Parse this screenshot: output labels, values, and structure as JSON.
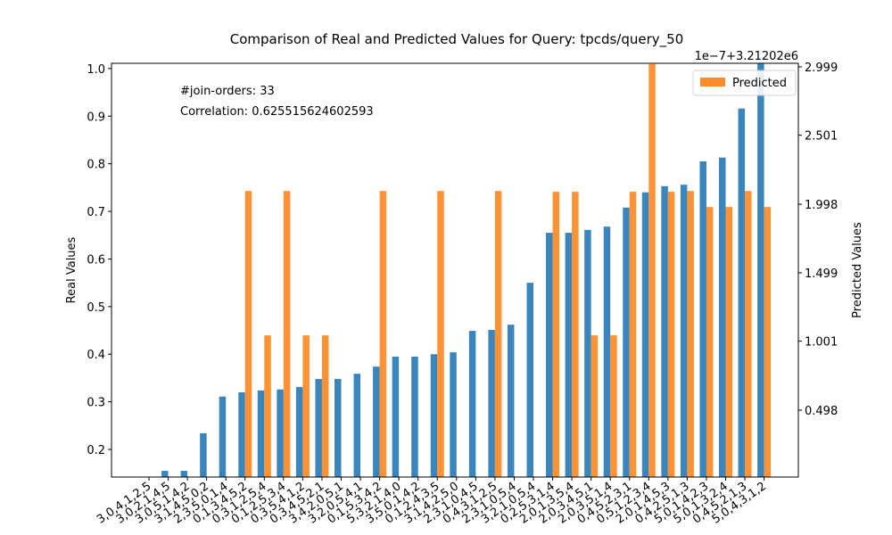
{
  "chart_data": {
    "type": "bar",
    "title": "Comparison of Real and Predicted Values for Query: tpcds/query_50",
    "ylabel": "Real Values",
    "y2label": "Predicted Values",
    "y2offset": "1e−7+3.21202e6",
    "annotations": [
      "#join-orders: 33",
      "Correlation: 0.625515624602593"
    ],
    "legend": "upper right",
    "categories": [
      "3,0,4,1,2,5",
      "3,0,2,1,4,5",
      "3,0,5,1,4,2",
      "3,1,4,5,0,2",
      "2,3,5,0,1,4",
      "0,1,3,4,5,2",
      "0,3,1,2,5,4",
      "0,1,2,5,3,4",
      "0,3,5,4,1,2",
      "0,3,4,5,2,1",
      "3,4,2,0,5,1",
      "3,2,0,5,4,1",
      "0,1,5,3,4,2",
      "5,3,2,1,4,0",
      "3,5,0,1,4,2",
      "0,1,2,4,3,5",
      "3,1,4,2,5,0",
      "2,3,1,0,4,5",
      "0,4,3,1,2,5",
      "2,3,1,0,5,4",
      "3,2,1,0,5,4",
      "0,2,5,3,1,4",
      "2,0,1,3,5,4",
      "2,0,3,4,5,1",
      "2,0,3,5,1,4",
      "0,4,5,2,3,1",
      "0,5,1,2,3,4",
      "2,0,1,4,5,3",
      "0,4,2,5,1,3",
      "5,0,1,4,2,3",
      "5,0,1,3,2,4",
      "0,4,5,2,1,3",
      "5,0,4,3,1,2"
    ],
    "series": [
      {
        "color": "#2f7fb8",
        "values": [
          0.142,
          0.155,
          0.155,
          0.234,
          0.311,
          0.32,
          0.324,
          0.326,
          0.331,
          0.348,
          0.348,
          0.359,
          0.374,
          0.395,
          0.395,
          0.4,
          0.404,
          0.449,
          0.451,
          0.462,
          0.55,
          0.655,
          0.655,
          0.661,
          0.668,
          0.708,
          0.74,
          0.753,
          0.756,
          0.805,
          0.813,
          0.916,
          1.01
        ]
      },
      {
        "name": "Predicted",
        "color": "#ff8c2a",
        "axis": "y2",
        "values": [
          0.012,
          0.012,
          0.012,
          0.012,
          0.012,
          2.095,
          1.043,
          2.095,
          1.043,
          1.043,
          0.012,
          0.012,
          2.095,
          0.012,
          0.012,
          2.095,
          0.012,
          0.012,
          2.095,
          0.012,
          0.012,
          2.089,
          2.089,
          1.043,
          1.043,
          2.089,
          3.02,
          2.089,
          2.095,
          1.978,
          1.978,
          2.095,
          1.978
        ]
      }
    ],
    "ylim": [
      0.142,
      1.011
    ],
    "yticks": [
      0.2,
      0.3,
      0.4,
      0.5,
      0.6,
      0.7,
      0.8,
      0.9,
      {
        "value": 1.0,
        "label": "1.0"
      }
    ],
    "y2lim": [
      0.011,
      3.025
    ],
    "y2ticks": [
      0.498,
      1.001,
      1.499,
      1.998,
      2.501,
      2.999
    ]
  }
}
